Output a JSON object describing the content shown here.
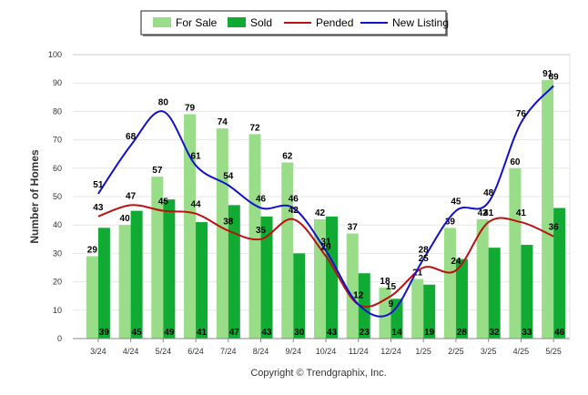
{
  "chart_data": {
    "type": "bar",
    "title": "",
    "xlabel": "",
    "ylabel": "Number of Homes",
    "ylim": [
      0,
      100
    ],
    "yticks": [
      0,
      10,
      20,
      30,
      40,
      50,
      60,
      70,
      80,
      90,
      100
    ],
    "grid": true,
    "legend_position": "top-center",
    "categories": [
      "3/24",
      "4/24",
      "5/24",
      "6/24",
      "7/24",
      "8/24",
      "9/24",
      "10/24",
      "11/24",
      "12/24",
      "1/25",
      "2/25",
      "3/25",
      "4/25",
      "5/25"
    ],
    "bar_series": [
      {
        "name": "For Sale",
        "color": "#99dd88",
        "values": [
          29,
          40,
          57,
          79,
          74,
          72,
          62,
          42,
          37,
          18,
          21,
          39,
          42,
          60,
          91
        ]
      },
      {
        "name": "Sold",
        "color": "#11aa33",
        "values": [
          39,
          45,
          49,
          41,
          47,
          43,
          30,
          43,
          23,
          14,
          19,
          28,
          32,
          33,
          46
        ]
      }
    ],
    "line_series": [
      {
        "name": "Pended",
        "color": "#bb1111",
        "values": [
          43,
          47,
          45,
          44,
          38,
          35,
          42,
          29,
          12,
          15,
          25,
          24,
          41,
          41,
          36
        ]
      },
      {
        "name": "New Listing",
        "color": "#1111cc",
        "values": [
          51,
          68,
          80,
          61,
          54,
          46,
          46,
          31,
          12,
          9,
          28,
          45,
          48,
          76,
          89
        ]
      }
    ]
  },
  "footer": {
    "copyright": "Copyright © Trendgraphix, Inc."
  }
}
